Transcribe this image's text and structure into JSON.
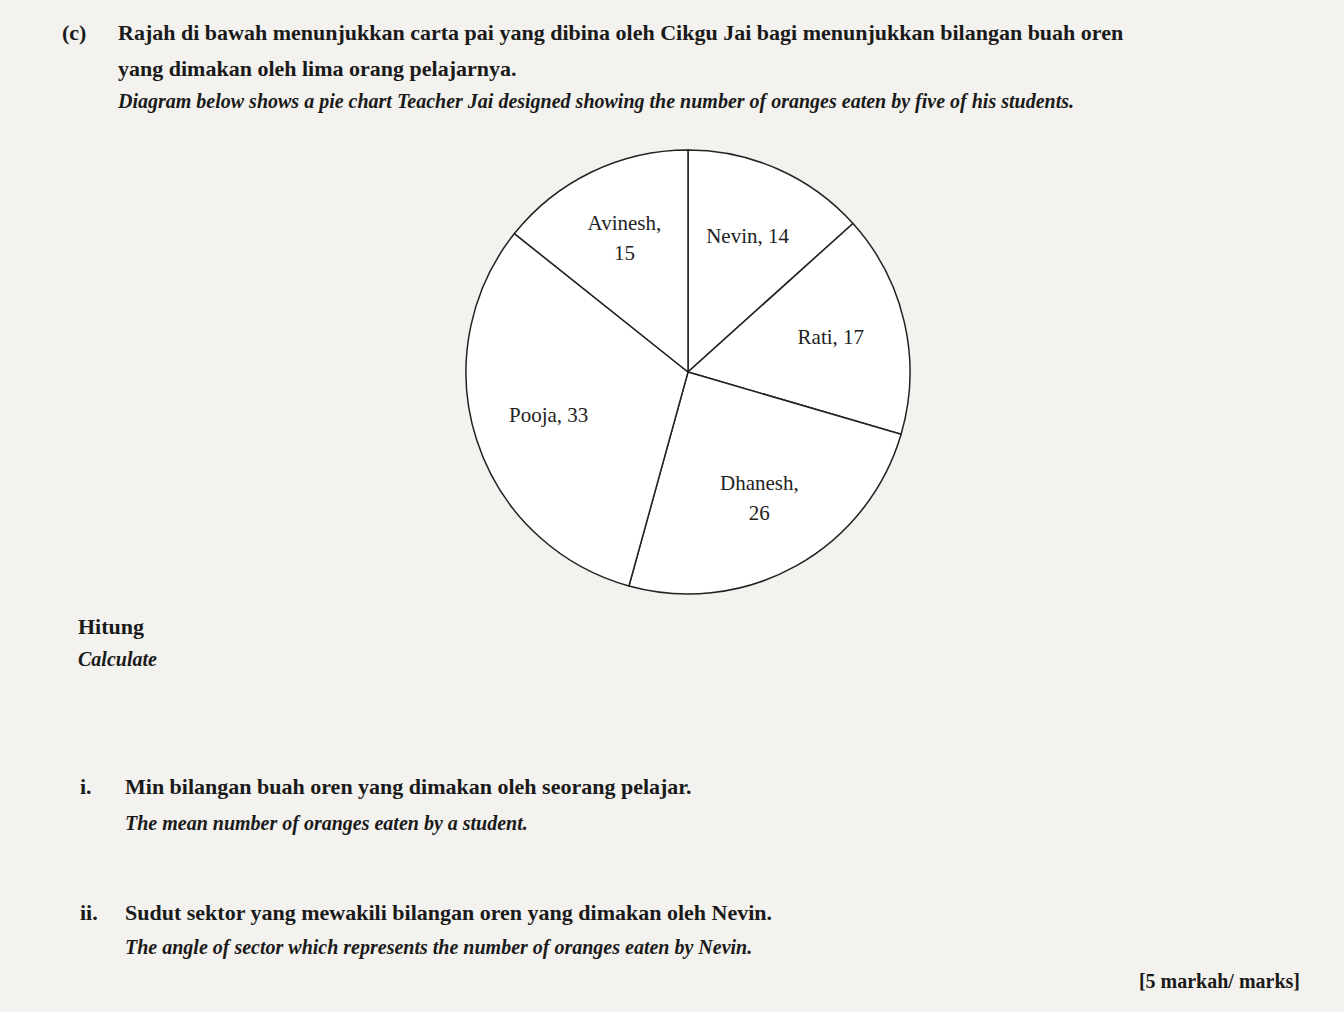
{
  "question": {
    "label": "(c)",
    "text_ms": [
      "Rajah di bawah menunjukkan carta pai yang dibina oleh Cikgu Jai bagi menunjukkan bilangan buah oren",
      "yang dimakan oleh lima orang pelajarnya."
    ],
    "text_en": "Diagram below shows a pie chart Teacher Jai designed showing the number of oranges eaten by five of his students."
  },
  "chart_data": {
    "type": "pie",
    "categories": [
      "Nevin",
      "Rati",
      "Dhanesh",
      "Pooja",
      "Avinesh"
    ],
    "values": [
      14,
      17,
      26,
      33,
      15
    ],
    "slice_labels": [
      [
        "Nevin, 14"
      ],
      [
        "Rati, 17"
      ],
      [
        "Dhanesh,",
        "26"
      ],
      [
        "Pooja, 33"
      ],
      [
        "Avinesh,",
        "15"
      ]
    ],
    "color": "#ffffff",
    "data_labels": true
  },
  "prompt": {
    "ms": "Hitung",
    "en": "Calculate"
  },
  "parts": [
    {
      "label": "i.",
      "ms": "Min bilangan buah oren yang dimakan oleh seorang pelajar.",
      "en": "The mean number of oranges eaten by a student."
    },
    {
      "label": "ii.",
      "ms": "Sudut sektor yang mewakili bilangan oren yang dimakan oleh Nevin.",
      "en": "The angle of sector which represents the number of oranges eaten by Nevin."
    }
  ],
  "marks": "[5 markah/ marks]"
}
